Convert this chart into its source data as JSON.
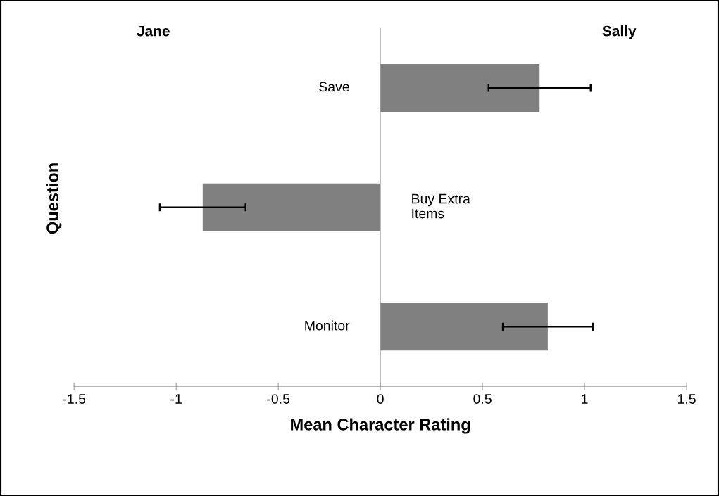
{
  "chart_data": {
    "type": "bar",
    "orientation": "horizontal",
    "categories": [
      "Save",
      "Buy Extra\nItems",
      "Monitor"
    ],
    "values": [
      0.78,
      -0.87,
      0.82
    ],
    "errors": [
      0.25,
      0.21,
      0.22
    ],
    "color": "#808080",
    "xlim": [
      -1.5,
      1.5
    ],
    "xticks": [
      -1.5,
      -1,
      -0.5,
      0,
      0.5,
      1,
      1.5
    ],
    "xlabel": "Mean Character Rating",
    "ylabel": "Question",
    "annotations": [
      "Jane",
      "Sally"
    ],
    "grid": false,
    "legend": false
  }
}
